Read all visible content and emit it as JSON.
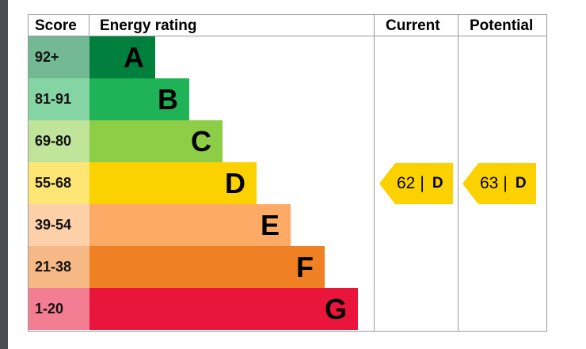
{
  "chart_data": {
    "type": "table",
    "headers": {
      "score": "Score",
      "rating": "Energy rating",
      "current": "Current",
      "potential": "Potential"
    },
    "bands": [
      {
        "score": "92+",
        "letter": "A",
        "color": "#007f3d"
      },
      {
        "score": "81-91",
        "letter": "B",
        "color": "#1fb257"
      },
      {
        "score": "69-80",
        "letter": "C",
        "color": "#8dce46"
      },
      {
        "score": "55-68",
        "letter": "D",
        "color": "#fcd100"
      },
      {
        "score": "39-54",
        "letter": "E",
        "color": "#fcaa65"
      },
      {
        "score": "21-38",
        "letter": "F",
        "color": "#ef8023"
      },
      {
        "score": "1-20",
        "letter": "G",
        "color": "#e9153b"
      }
    ],
    "current": {
      "value": "62",
      "separator": "|",
      "band": "D",
      "color": "#fcd100"
    },
    "potential": {
      "value": "63",
      "separator": "|",
      "band": "D",
      "color": "#fcd100"
    }
  }
}
